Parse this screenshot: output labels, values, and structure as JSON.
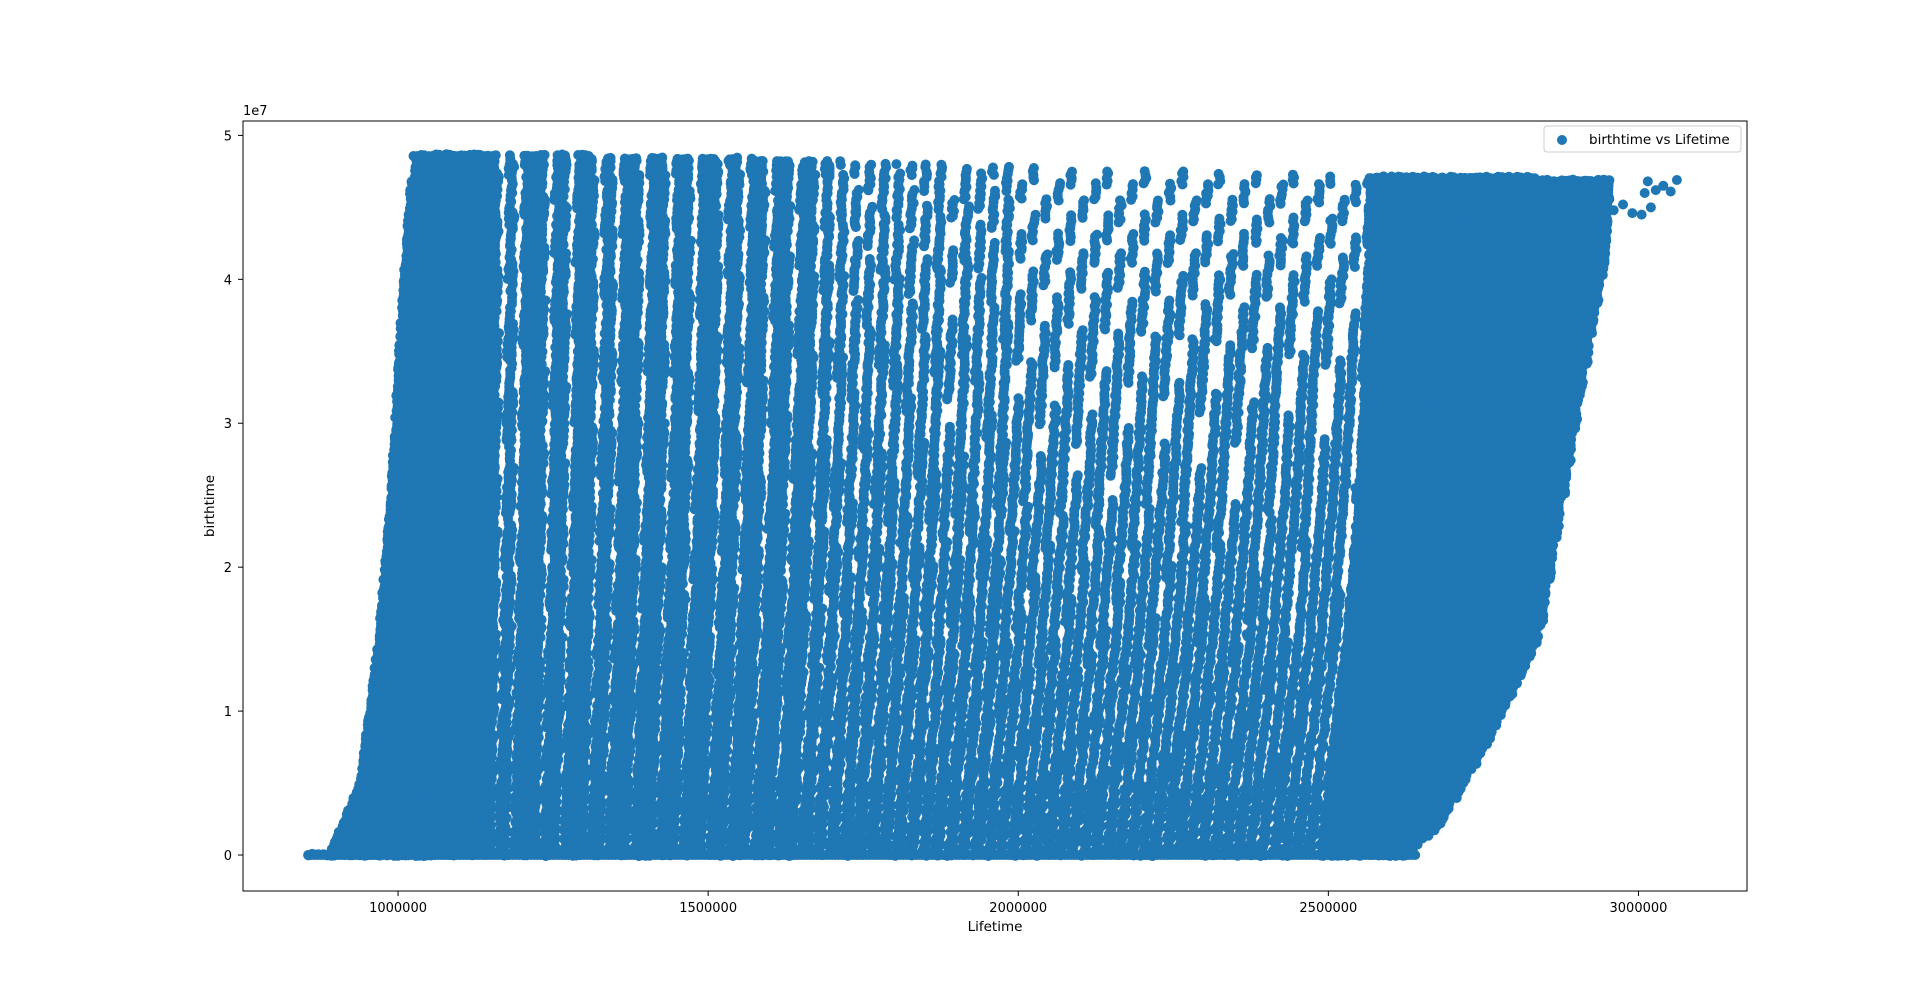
{
  "chart_data": {
    "type": "scatter",
    "xlabel": "Lifetime",
    "ylabel": "birthtime",
    "y_offset_label": "1e7",
    "xlim": [
      750000,
      3175000
    ],
    "ylim": [
      -2500000,
      51000000
    ],
    "x_ticks": [
      {
        "value": 1000000,
        "label": "1000000"
      },
      {
        "value": 1500000,
        "label": "1500000"
      },
      {
        "value": 2000000,
        "label": "2000000"
      },
      {
        "value": 2500000,
        "label": "2500000"
      },
      {
        "value": 3000000,
        "label": "3000000"
      }
    ],
    "y_ticks": [
      {
        "value": 0,
        "label": "0"
      },
      {
        "value": 10000000,
        "label": "1"
      },
      {
        "value": 20000000,
        "label": "2"
      },
      {
        "value": 30000000,
        "label": "3"
      },
      {
        "value": 40000000,
        "label": "4"
      },
      {
        "value": 50000000,
        "label": "5"
      }
    ],
    "grid": false,
    "legend": {
      "position": "top-right"
    },
    "color": "#1f77b4",
    "series": [
      {
        "name": "birthtime vs Lifetime",
        "envelope": {
          "left_edge": [
            [
              855000,
              0
            ],
            [
              890000,
              0
            ],
            [
              940000,
              5000000
            ],
            [
              970000,
              15000000
            ],
            [
              990000,
              25000000
            ],
            [
              1010000,
              40000000
            ],
            [
              1025000,
              48500000
            ]
          ],
          "right_edge": [
            [
              2625000,
              0
            ],
            [
              2680000,
              2000000
            ],
            [
              2760000,
              8000000
            ],
            [
              2840000,
              15000000
            ],
            [
              2880000,
              25000000
            ],
            [
              2920000,
              35000000
            ],
            [
              2950000,
              42000000
            ],
            [
              2960000,
              47000000
            ]
          ],
          "top_edge": [
            [
              1025000,
              48800000
            ],
            [
              1500000,
              48500000
            ],
            [
              2000000,
              47800000
            ],
            [
              2500000,
              47300000
            ],
            [
              2960000,
              47000000
            ]
          ]
        },
        "outliers": [
          [
            3005000,
            44500000
          ],
          [
            3010000,
            46000000
          ],
          [
            3015000,
            46800000
          ],
          [
            3020000,
            45000000
          ],
          [
            3028000,
            46200000
          ],
          [
            3040000,
            46500000
          ],
          [
            3052000,
            46100000
          ],
          [
            3062000,
            46900000
          ],
          [
            2960000,
            44800000
          ],
          [
            2975000,
            45200000
          ],
          [
            2990000,
            44600000
          ]
        ],
        "gaps_x": [
          1170000,
          1195000,
          1245000,
          1280000,
          1325000,
          1355000,
          1398000,
          1440000,
          1480000,
          1525000,
          1560000,
          1600000,
          1640000,
          1680000,
          1705000,
          1728000,
          1750000,
          1772000,
          1795000,
          1818000,
          1840000,
          1862000,
          1885000,
          1905000,
          1928000,
          1950000,
          1972000,
          1995000,
          2015000,
          2035000,
          2055000,
          2075000,
          2095000,
          2115000,
          2135000,
          2155000,
          2175000,
          2195000,
          2215000,
          2235000,
          2255000,
          2275000,
          2295000,
          2315000,
          2335000,
          2355000,
          2375000,
          2395000,
          2415000,
          2435000,
          2455000,
          2475000,
          2495000,
          2515000,
          2535000,
          2555000
        ]
      }
    ]
  }
}
